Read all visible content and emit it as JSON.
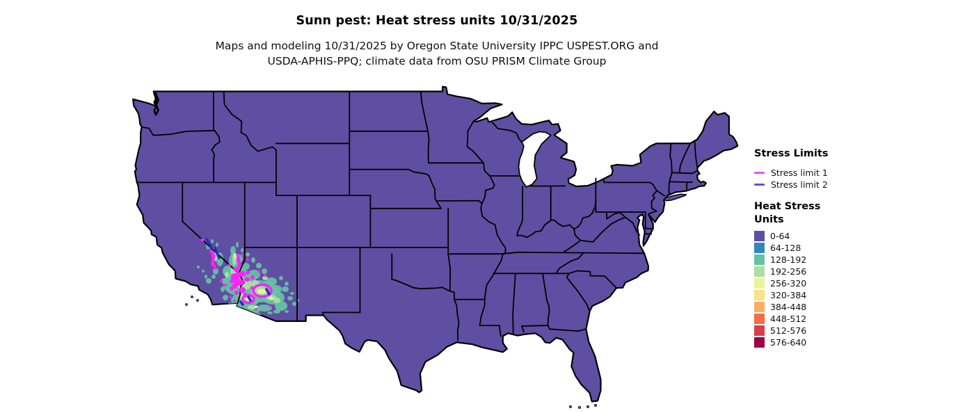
{
  "title": "Sunn pest: Heat stress units 10/31/2025",
  "subtitle_line1": "Maps and modeling 10/31/2025 by Oregon State University IPPC USPEST.ORG and",
  "subtitle_line2": "USDA-APHIS-PPQ; climate data from OSU PRISM Climate Group",
  "colors": {
    "background": "#ffffff",
    "state_border": "#000000",
    "water": "#ffffff"
  },
  "legend": {
    "stress_limits": {
      "heading": "Stress Limits",
      "items": [
        {
          "label": "Stress limit 1",
          "color": "#f24df2",
          "map_line_color": "#fb22fb"
        },
        {
          "label": "Stress limit 2",
          "color": "#5b52cf",
          "map_line_color": "#2f28c0"
        }
      ]
    },
    "heat_stress": {
      "heading_line1": "Heat Stress",
      "heading_line2": "Units",
      "classes": [
        {
          "label": "0-64",
          "color": "#5e4fa2"
        },
        {
          "label": "64-128",
          "color": "#3288bd"
        },
        {
          "label": "128-192",
          "color": "#66c2a5"
        },
        {
          "label": "192-256",
          "color": "#abdda4"
        },
        {
          "label": "256-320",
          "color": "#e6f598"
        },
        {
          "label": "320-384",
          "color": "#fee08b"
        },
        {
          "label": "384-448",
          "color": "#fdae61"
        },
        {
          "label": "448-512",
          "color": "#f46d43"
        },
        {
          "label": "512-576",
          "color": "#d53e4f"
        },
        {
          "label": "576-640",
          "color": "#9e0142"
        }
      ]
    }
  },
  "map_summary": {
    "region": "Contiguous United States with state borders",
    "dominant_class": "0-64",
    "elevated_classes_visible": [
      "64-128",
      "128-192",
      "192-256",
      "256-320"
    ],
    "hotspot_region": "southeastern California and southern Arizona (lower Colorado River, Phoenix, Yuma areas)",
    "stress_limit_lines_location": "within the southwest hotspot"
  }
}
